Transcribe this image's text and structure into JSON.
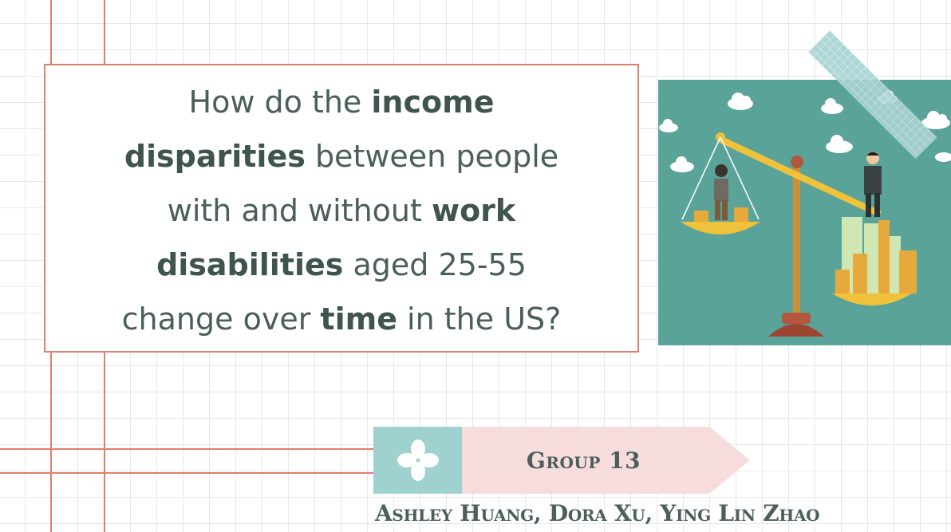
{
  "slide": {
    "question": {
      "p1": "How do the ",
      "b1": "income",
      "b2": "disparities",
      "p2": " between people",
      "p3": "with and without ",
      "b3": "work",
      "b4": "disabilities",
      "p4": " aged 25-55",
      "p5": "change over ",
      "b5": "time",
      "p6": " in the US?"
    },
    "group_label": "Group 13",
    "authors": "Ashley Huang, Dora Xu, Ying Lin Zhao"
  },
  "colors": {
    "accent_red": "#e27e6c",
    "teal": "#9fd1cf",
    "pink": "#f6dcdd",
    "text_dark": "#4a5e5a",
    "illustration_bg": "#5aa399"
  },
  "icons": [
    "flower-icon",
    "balance-scale-illustration",
    "tape-decoration"
  ]
}
